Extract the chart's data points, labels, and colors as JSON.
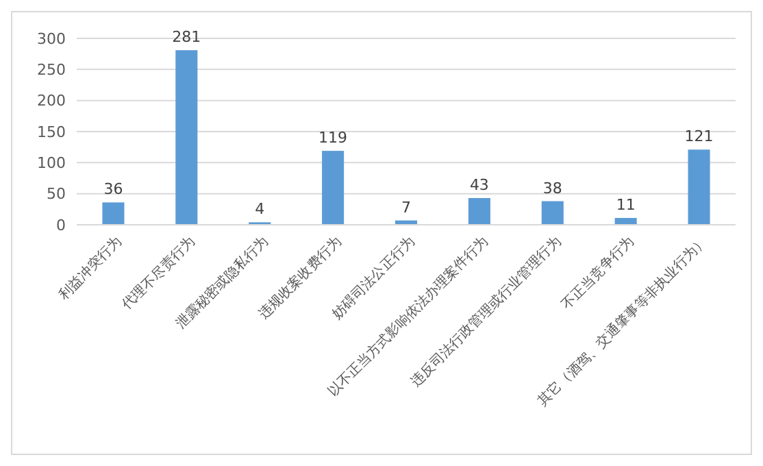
{
  "chart_data": {
    "type": "bar",
    "categories": [
      "利益冲突行为",
      "代理不尽责行为",
      "泄露秘密或隐私行为",
      "违规收案收费行为",
      "妨碍司法公正行为",
      "以不正当方式影响依法办理案件行为",
      "违反司法行政管理或行业管理行为",
      "不正当竞争行为",
      "其它（酒驾、交通肇事等非执业行为）"
    ],
    "values": [
      36,
      281,
      4,
      119,
      7,
      43,
      38,
      11,
      121
    ],
    "color": "#5b9bd5",
    "ylim": [
      0,
      300
    ],
    "yticks": [
      0,
      50,
      100,
      150,
      200,
      250,
      300
    ],
    "grid": "y",
    "data_labels": true
  }
}
